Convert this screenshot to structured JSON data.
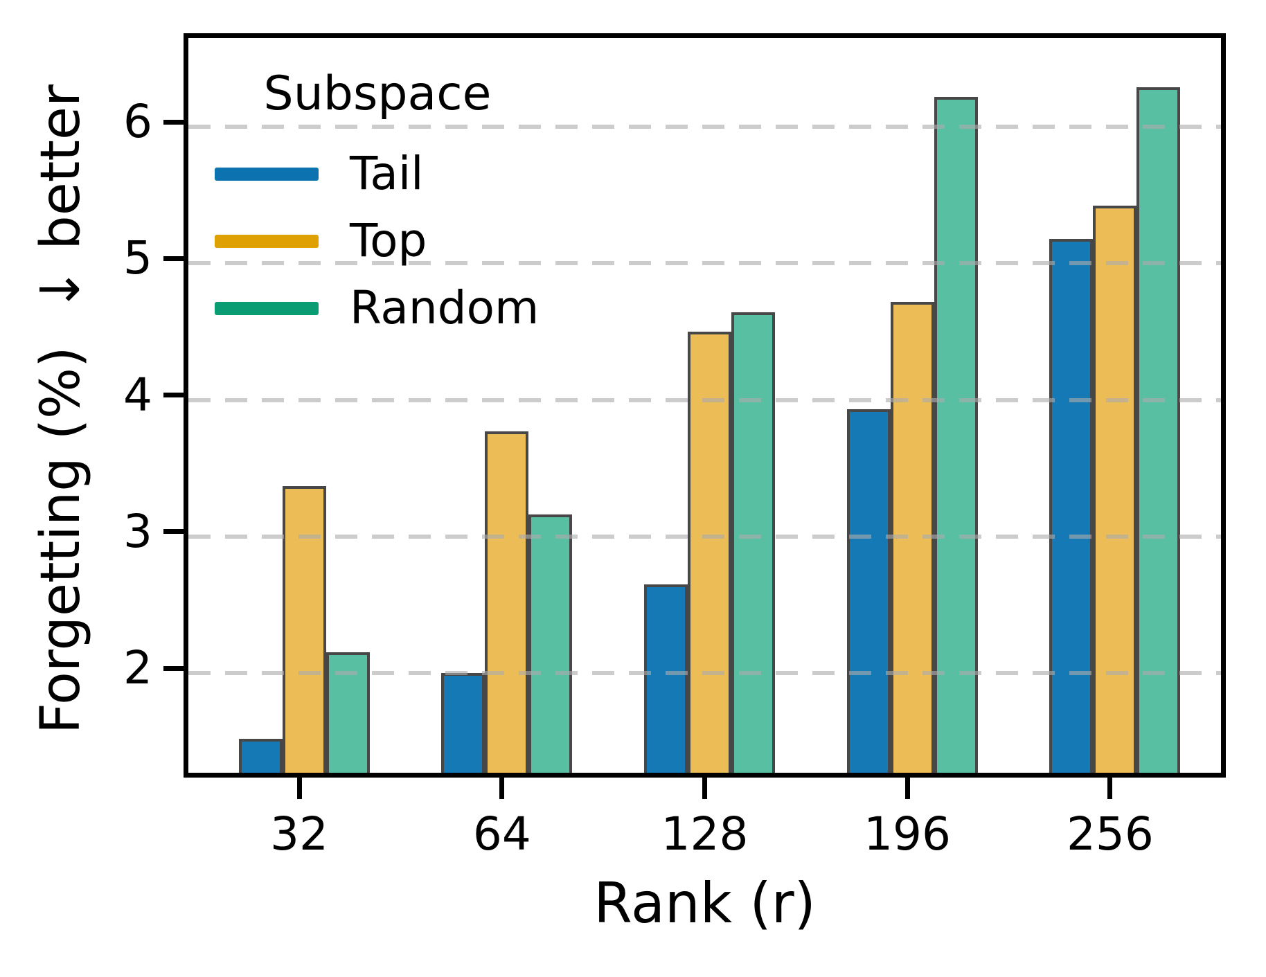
{
  "chart_data": {
    "type": "bar",
    "title": "",
    "xlabel": "Rank (r)",
    "ylabel": "Forgetting (%)  ↓ better",
    "categories": [
      "32",
      "64",
      "128",
      "196",
      "256"
    ],
    "series": [
      {
        "name": "Tail",
        "legend_color": "#0d72b0",
        "bar_fill": "#1579b5",
        "values": [
          1.45,
          1.93,
          2.58,
          3.86,
          5.11
        ]
      },
      {
        "name": "Top",
        "legend_color": "#dfa004",
        "bar_fill": "#ecbd57",
        "values": [
          3.3,
          3.7,
          4.43,
          4.65,
          5.35
        ]
      },
      {
        "name": "Random",
        "legend_color": "#0a9d74",
        "bar_fill": "#58bfa3",
        "values": [
          2.08,
          3.09,
          4.57,
          6.15,
          6.22
        ]
      }
    ],
    "legend_title": "Subspace",
    "legend_position": "upper left",
    "yticks": [
      2,
      3,
      4,
      5,
      6
    ],
    "ylim": [
      1.2,
      6.65
    ],
    "grid": "horizontal-dashed",
    "grid_on_top": true,
    "bar_edge_color": "#474747",
    "axis_color": "#000000",
    "background": "#ffffff"
  }
}
